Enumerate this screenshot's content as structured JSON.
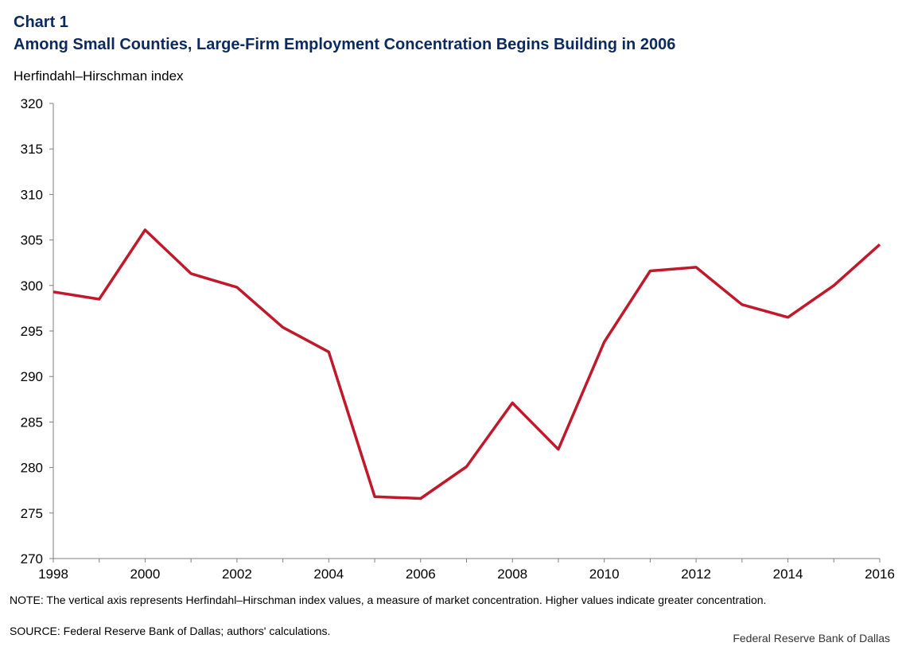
{
  "header": {
    "chart_number": "Chart 1",
    "title": "Among Small Counties, Large-Firm Employment  Concentration Begins Building in 2006"
  },
  "chart_data": {
    "type": "line",
    "title": "Among Small Counties, Large-Firm Employment  Concentration Begins Building in 2006",
    "ylabel": "Herfindahl–Hirschman  index",
    "xlabel": "",
    "x": [
      1998,
      1999,
      2000,
      2001,
      2002,
      2003,
      2004,
      2005,
      2006,
      2007,
      2008,
      2009,
      2010,
      2011,
      2012,
      2013,
      2014,
      2015,
      2016
    ],
    "series": [
      {
        "name": "Herfindahl–Hirschman index",
        "color": "#c0192b",
        "values": [
          299.3,
          298.5,
          306.1,
          301.3,
          299.8,
          295.4,
          292.7,
          276.8,
          276.6,
          280.1,
          287.1,
          282.0,
          293.8,
          301.6,
          302.0,
          297.9,
          296.5,
          300.0,
          304.5
        ]
      }
    ],
    "xticks": [
      "1998",
      "2000",
      "2002",
      "2004",
      "2006",
      "2008",
      "2010",
      "2012",
      "2014",
      "2016"
    ],
    "yticks": [
      "270",
      "275",
      "280",
      "285",
      "290",
      "295",
      "300",
      "305",
      "310",
      "315",
      "320"
    ],
    "xlim": [
      1998,
      2016
    ],
    "ylim": [
      270,
      320
    ],
    "grid": false
  },
  "footer": {
    "note": "NOTE: The vertical axis represents Herfindahl–Hirschman index values, a measure of market concentration. Higher values indicate greater concentration.",
    "source": "SOURCE: Federal Reserve Bank of Dallas; authors' calculations.",
    "credit": "Federal Reserve  Bank of Dallas"
  }
}
